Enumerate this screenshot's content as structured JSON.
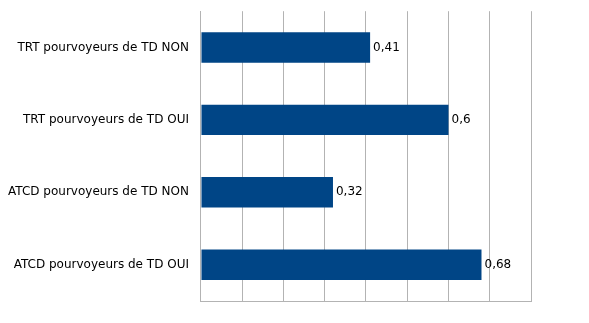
{
  "chart_data": {
    "type": "bar",
    "orientation": "horizontal",
    "categories": [
      "TRT pourvoyeurs de TD NON",
      "TRT pourvoyeurs de TD OUI",
      "ATCD pourvoyeurs de TD NON",
      "ATCD pourvoyeurs de TD OUI"
    ],
    "values": [
      0.41,
      0.6,
      0.32,
      0.68
    ],
    "value_labels": [
      "0,41",
      "0,6",
      "0,32",
      "0,68"
    ],
    "color": "#004586",
    "xlim": [
      0,
      0.8
    ],
    "xticks": [
      0,
      0.1,
      0.2,
      0.3,
      0.4,
      0.5,
      0.6,
      0.7,
      0.8
    ],
    "grid": true,
    "data_labels": true,
    "tick_labels": "y"
  }
}
